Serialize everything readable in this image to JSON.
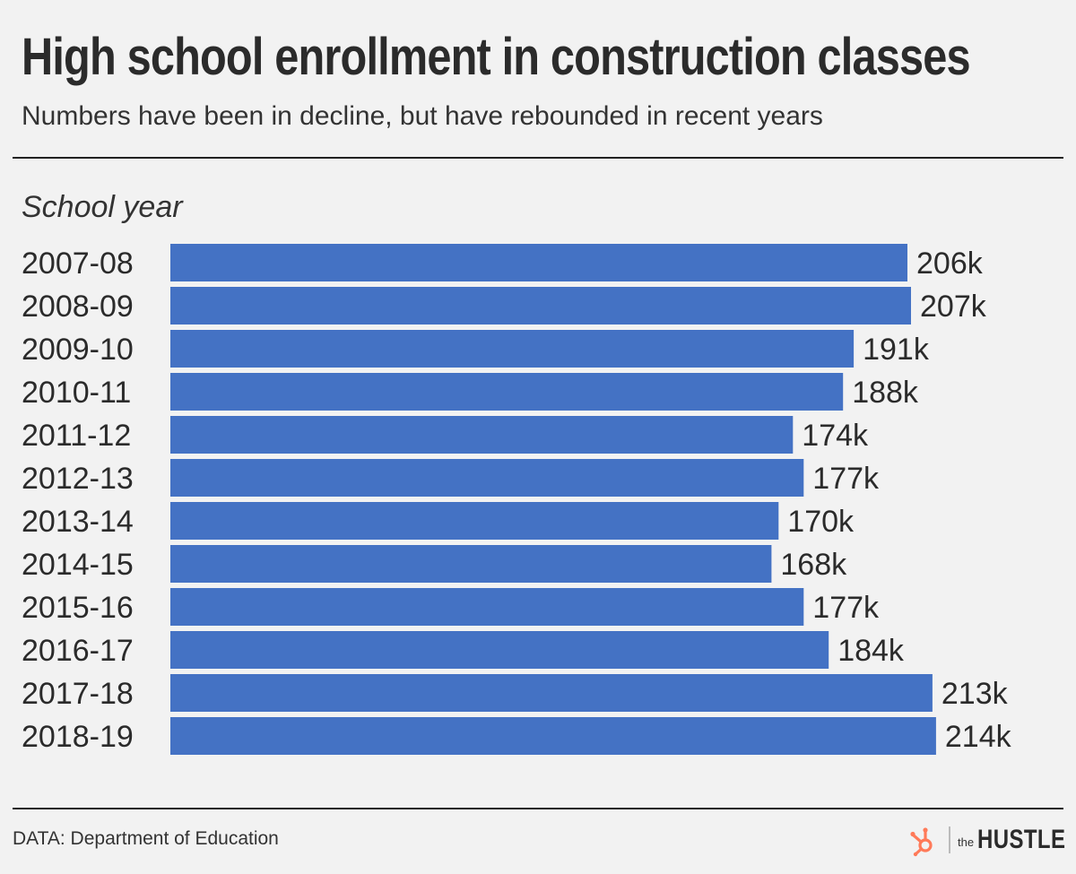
{
  "header": {
    "title": "High school enrollment in construction classes",
    "subtitle": "Numbers have been in decline, but have rebounded in recent years"
  },
  "chart_data": {
    "type": "bar",
    "orientation": "horizontal",
    "category_axis_label": "School year",
    "categories": [
      "2007-08",
      "2008-09",
      "2009-10",
      "2010-11",
      "2011-12",
      "2012-13",
      "2013-14",
      "2014-15",
      "2015-16",
      "2016-17",
      "2017-18",
      "2018-19"
    ],
    "values": [
      206,
      207,
      191,
      188,
      174,
      177,
      170,
      168,
      177,
      184,
      213,
      214
    ],
    "data_labels": [
      "206k",
      "207k",
      "191k",
      "188k",
      "174k",
      "177k",
      "170k",
      "168k",
      "177k",
      "184k",
      "213k",
      "214k"
    ],
    "unit": "thousands",
    "bar_color": "#4472c4",
    "grid": false,
    "legend": "none"
  },
  "footer": {
    "source": "DATA: Department of Education",
    "logo_prefix": "the",
    "logo_word": "HUSTLE",
    "logo_color": "#ff7a59"
  }
}
